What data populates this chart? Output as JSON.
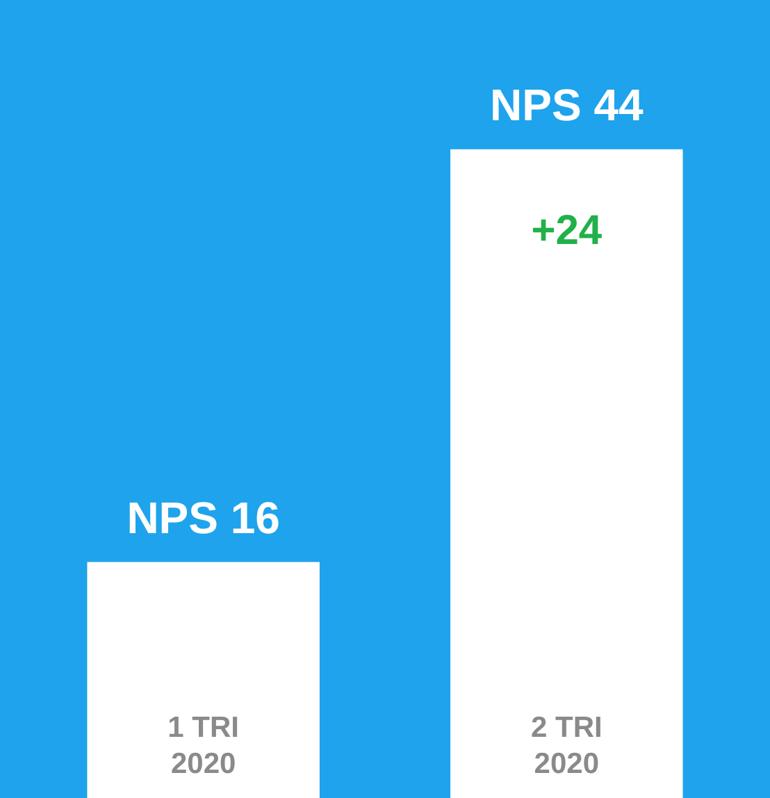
{
  "chart_data": {
    "type": "bar",
    "categories": [
      "1 TRI\n2020",
      "2 TRI\n2020"
    ],
    "values": [
      16,
      44
    ],
    "color": "#ffffff",
    "value_labels": [
      "NPS 16",
      "NPS 44"
    ],
    "annotations": [
      {
        "text": "+24",
        "x": "2 TRI\n2020",
        "y": 44
      }
    ],
    "grid": false
  }
}
